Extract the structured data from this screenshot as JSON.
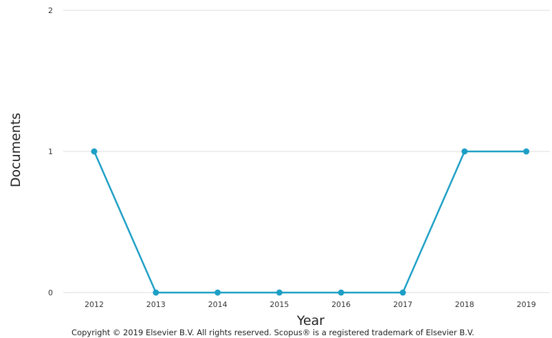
{
  "chart_data": {
    "type": "line",
    "x": [
      "2012",
      "2013",
      "2014",
      "2015",
      "2016",
      "2017",
      "2018",
      "2019"
    ],
    "series": [
      {
        "values": [
          1,
          0,
          0,
          0,
          0,
          0,
          1,
          1
        ]
      }
    ],
    "xlabel": "Year",
    "ylabel": "Documents",
    "yticks": [
      "0",
      "1",
      "2"
    ],
    "ylim": [
      0,
      2
    ],
    "grid": true,
    "line_color": "#1d9fc6"
  },
  "footer": {
    "copyright": "Copyright © 2019 Elsevier B.V. All rights reserved. Scopus® is a registered trademark of Elsevier B.V."
  }
}
